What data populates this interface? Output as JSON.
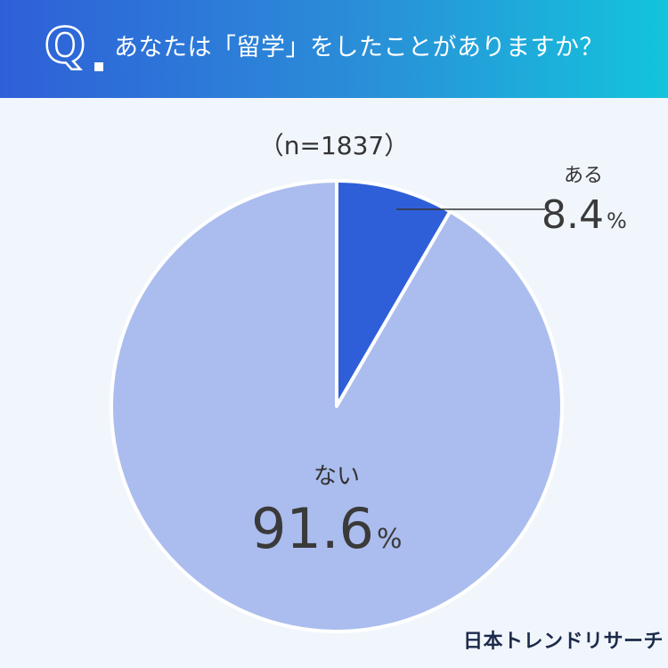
{
  "header": {
    "q_mark": "Q",
    "question": "あなたは「留学」をしたことがありますか？"
  },
  "sample_size": "（n=1837）",
  "brand": "日本トレンドリサーチ",
  "chart_data": {
    "type": "pie",
    "categories": [
      "ある",
      "ない"
    ],
    "values": [
      8.4,
      91.6
    ],
    "unit": "%",
    "colors": [
      "#2f5fd8",
      "#abbdee"
    ],
    "start_angle_deg": 0,
    "direction": "clockwise"
  }
}
